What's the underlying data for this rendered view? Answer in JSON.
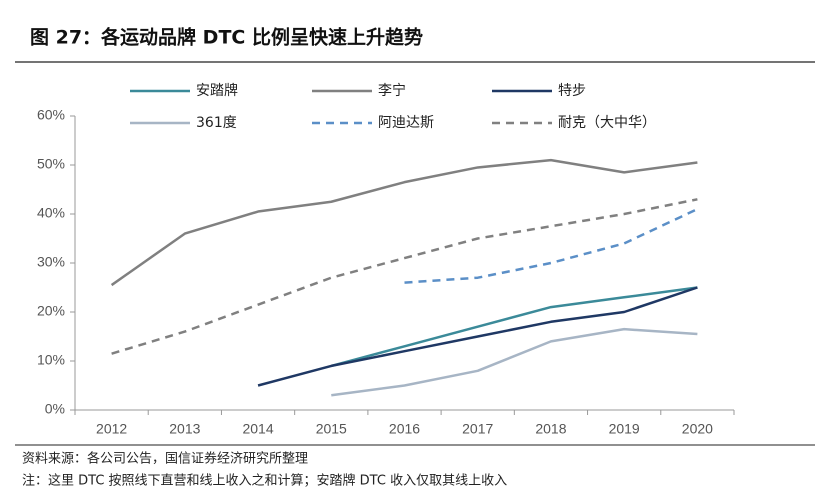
{
  "chart_data": {
    "type": "line",
    "title": "图 27：各运动品牌 DTC 比例呈快速上升趋势",
    "source": "资料来源：各公司公告，国信证券经济研究所整理",
    "note": "注：这里 DTC 按照线下直营和线上收入之和计算；安踏牌 DTC 收入仅取其线上收入",
    "categories": [
      "2012",
      "2013",
      "2014",
      "2015",
      "2016",
      "2017",
      "2018",
      "2019",
      "2020"
    ],
    "series": [
      {
        "name": "安踏牌",
        "color": "#3b8a99",
        "line_style": "solid",
        "values": [
          null,
          null,
          null,
          9,
          13,
          17,
          21,
          23,
          25
        ]
      },
      {
        "name": "李宁",
        "color": "#808080",
        "line_style": "solid",
        "values": [
          25.5,
          36,
          40.5,
          42.5,
          46.5,
          49.5,
          51,
          48.5,
          50.5
        ]
      },
      {
        "name": "特步",
        "color": "#1f3864",
        "line_style": "solid",
        "values": [
          null,
          null,
          5,
          9,
          12,
          15,
          18,
          20,
          25
        ]
      },
      {
        "name": "361度",
        "color": "#a7b5c5",
        "line_style": "solid",
        "values": [
          null,
          null,
          null,
          3,
          5,
          8,
          14,
          16.5,
          15.5
        ]
      },
      {
        "name": "阿迪达斯",
        "color": "#5b8fc7",
        "line_style": "dashed",
        "values": [
          null,
          null,
          null,
          null,
          26,
          27,
          30,
          34,
          41
        ]
      },
      {
        "name": "耐克（大中华）",
        "color": "#808080",
        "line_style": "dashed",
        "values": [
          11.5,
          16,
          21.5,
          27,
          31,
          35,
          37.5,
          40,
          43
        ]
      }
    ],
    "ylim": [
      0,
      60
    ],
    "yticks": [
      {
        "value": 0,
        "label": "0%"
      },
      {
        "value": 10,
        "label": "10%"
      },
      {
        "value": 20,
        "label": "20%"
      },
      {
        "value": 30,
        "label": "30%"
      },
      {
        "value": 40,
        "label": "40%"
      },
      {
        "value": 50,
        "label": "50%"
      },
      {
        "value": 60,
        "label": "60%"
      }
    ],
    "grid": false
  }
}
